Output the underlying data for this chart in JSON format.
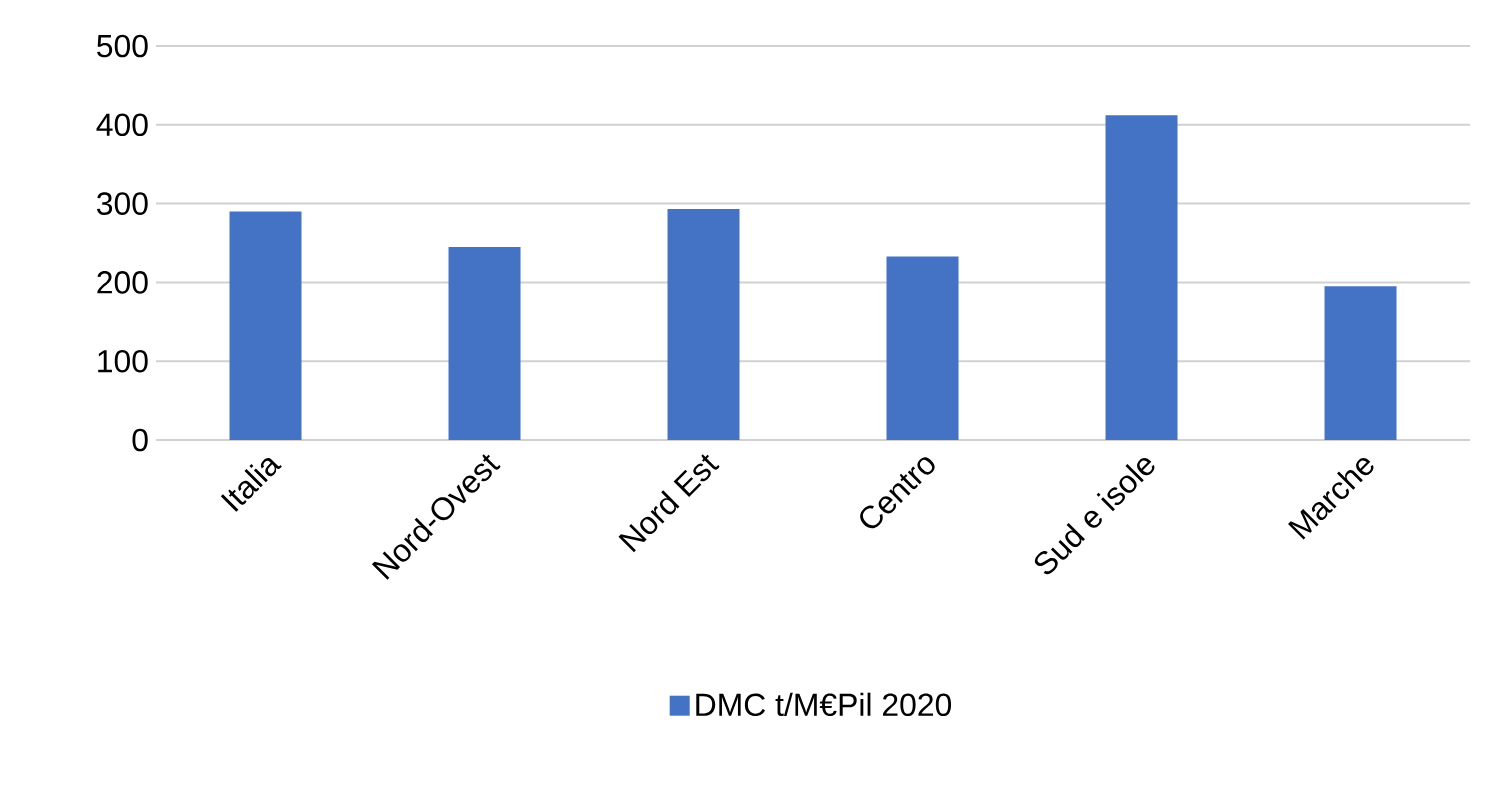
{
  "chart_data": {
    "type": "bar",
    "categories": [
      "Italia",
      "Nord-Ovest",
      "Nord Est",
      "Centro",
      "Sud e isole",
      "Marche"
    ],
    "series": [
      {
        "name": "DMC t/M€Pil 2020",
        "color": "#4472c4",
        "values": [
          290,
          245,
          293,
          233,
          412,
          195
        ]
      }
    ],
    "ylim": [
      0,
      500
    ],
    "yticks": [
      0,
      100,
      200,
      300,
      400,
      500
    ],
    "grid": "y",
    "legend": "bottom"
  }
}
